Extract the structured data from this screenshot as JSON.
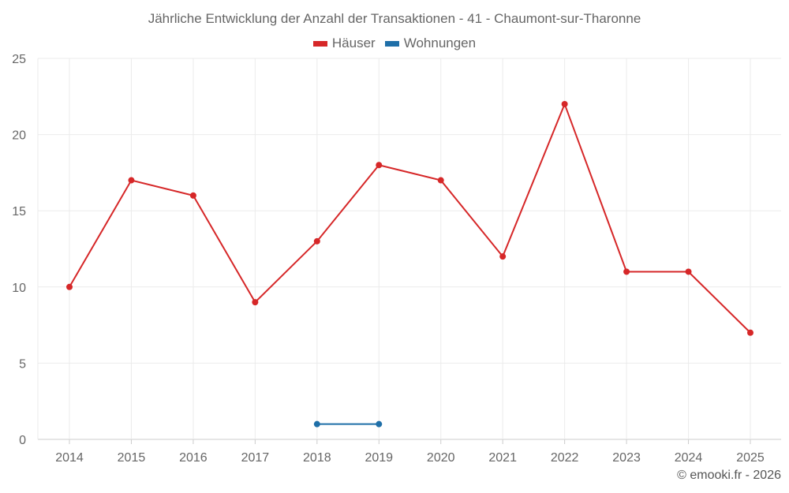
{
  "chart_data": {
    "type": "line",
    "title": "Jährliche Entwicklung der Anzahl der Transaktionen - 41 - Chaumont-sur-Tharonne",
    "x": [
      "2014",
      "2015",
      "2016",
      "2017",
      "2018",
      "2019",
      "2020",
      "2021",
      "2022",
      "2023",
      "2024",
      "2025"
    ],
    "series": [
      {
        "name": "Häuser",
        "color": "#d62728",
        "values": [
          10,
          17,
          16,
          9,
          13,
          18,
          17,
          12,
          22,
          11,
          11,
          7
        ]
      },
      {
        "name": "Wohnungen",
        "color": "#1f6fa8",
        "values": [
          null,
          null,
          null,
          null,
          1,
          1,
          null,
          null,
          null,
          null,
          null,
          null
        ]
      }
    ],
    "ylim": [
      0,
      25
    ],
    "yticks": [
      0,
      5,
      10,
      15,
      20,
      25
    ],
    "grid": true,
    "legend": "top-center",
    "xlabel": "",
    "ylabel": ""
  },
  "credit": "© emooki.fr - 2026"
}
